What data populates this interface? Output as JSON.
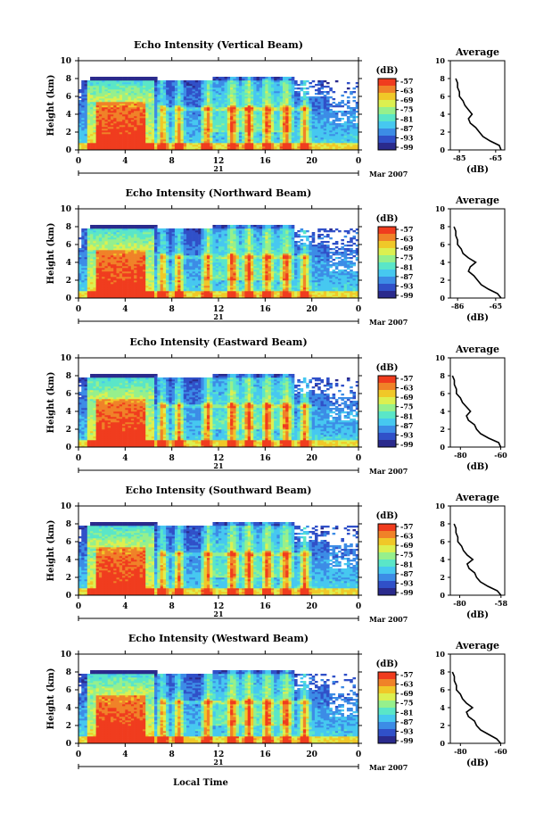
{
  "colors": {
    "scale": [
      "#2a2a8c",
      "#3050c8",
      "#3c8ce6",
      "#46c8f0",
      "#5ae6c8",
      "#96f08c",
      "#dcf050",
      "#f0c828",
      "#f08228",
      "#f03c1e"
    ],
    "low_echo": "#2a3c9c",
    "strong_echo": "#f03c1e"
  },
  "x_ticks": [
    "0",
    "4",
    "8",
    "12",
    "16",
    "20",
    "0"
  ],
  "y_ticks": [
    "0",
    "2",
    "4",
    "6",
    "8",
    "10"
  ],
  "colorbar_ticks": [
    "-57",
    "-63",
    "-69",
    "-75",
    "-81",
    "-87",
    "-93",
    "-99"
  ],
  "ylabel": "Height (km)",
  "date_mark": "21",
  "date_label": "Mar 2007",
  "xlabel": "Local Time",
  "colorbar_unit": "(dB)",
  "avg_title": "Average",
  "avg_xlabel": "(dB)",
  "chart_data": [
    {
      "type": "heatmap",
      "title": "Echo Intensity (Vertical Beam)",
      "ylabel": "Height (km)",
      "xticks": [
        "0",
        "4",
        "8",
        "12",
        "16",
        "20",
        "0"
      ],
      "ylim": [
        0,
        10
      ],
      "colorbar": {
        "label": "(dB)",
        "ticks": [
          -57,
          -63,
          -69,
          -75,
          -81,
          -87,
          -93,
          -99
        ]
      },
      "average_profile": {
        "title": "Average",
        "xlabel": "(dB)",
        "xticks": [
          "-85",
          "-65"
        ],
        "xlim": [
          -90,
          -60
        ],
        "heights": [
          0.0,
          0.5,
          1.0,
          1.5,
          2.0,
          2.5,
          3.0,
          3.5,
          4.0,
          4.5,
          5.0,
          5.5,
          6.0,
          6.5,
          7.0,
          7.5,
          8.0
        ],
        "values": [
          -62,
          -63,
          -68,
          -72,
          -74,
          -76,
          -79,
          -80,
          -78,
          -80,
          -82,
          -83,
          -85,
          -85,
          -86,
          -86,
          -87
        ]
      }
    },
    {
      "type": "heatmap",
      "title": "Echo Intensity (Northward Beam)",
      "ylabel": "Height (km)",
      "xticks": [
        "0",
        "4",
        "8",
        "12",
        "16",
        "20",
        "0"
      ],
      "ylim": [
        0,
        10
      ],
      "colorbar": {
        "label": "(dB)",
        "ticks": [
          -57,
          -63,
          -69,
          -75,
          -81,
          -87,
          -93,
          -99
        ]
      },
      "average_profile": {
        "title": "Average",
        "xlabel": "(dB)",
        "xticks": [
          "-86",
          "-65"
        ],
        "xlim": [
          -90,
          -60
        ],
        "heights": [
          0.0,
          0.5,
          1.0,
          1.5,
          2.0,
          2.5,
          3.0,
          3.5,
          4.0,
          4.5,
          5.0,
          5.5,
          6.0,
          6.5,
          7.0,
          7.5,
          8.0
        ],
        "values": [
          -62,
          -64,
          -69,
          -73,
          -75,
          -77,
          -80,
          -79,
          -76,
          -80,
          -83,
          -84,
          -86,
          -86,
          -87,
          -87,
          -88
        ]
      }
    },
    {
      "type": "heatmap",
      "title": "Echo Intensity (Eastward Beam)",
      "ylabel": "Height (km)",
      "xticks": [
        "0",
        "4",
        "8",
        "12",
        "16",
        "20",
        "0"
      ],
      "ylim": [
        0,
        10
      ],
      "colorbar": {
        "label": "(dB)",
        "ticks": [
          -57,
          -63,
          -69,
          -75,
          -81,
          -87,
          -93,
          -99
        ]
      },
      "average_profile": {
        "title": "Average",
        "xlabel": "(dB)",
        "xticks": [
          "-80",
          "-60"
        ],
        "xlim": [
          -85,
          -58
        ],
        "heights": [
          0.0,
          0.5,
          1.0,
          1.5,
          2.0,
          2.5,
          3.0,
          3.5,
          4.0,
          4.5,
          5.0,
          5.5,
          6.0,
          6.5,
          7.0,
          7.5,
          8.0
        ],
        "values": [
          -60,
          -61,
          -66,
          -70,
          -72,
          -73,
          -76,
          -77,
          -75,
          -77,
          -79,
          -80,
          -82,
          -82,
          -83,
          -83,
          -84
        ]
      }
    },
    {
      "type": "heatmap",
      "title": "Echo Intensity (Southward Beam)",
      "ylabel": "Height (km)",
      "xticks": [
        "0",
        "4",
        "8",
        "12",
        "16",
        "20",
        "0"
      ],
      "ylim": [
        0,
        10
      ],
      "colorbar": {
        "label": "(dB)",
        "ticks": [
          -57,
          -63,
          -69,
          -75,
          -81,
          -87,
          -93,
          -99
        ]
      },
      "average_profile": {
        "title": "Average",
        "xlabel": "(dB)",
        "xticks": [
          "-80",
          "-58"
        ],
        "xlim": [
          -85,
          -56
        ],
        "heights": [
          0.0,
          0.5,
          1.0,
          1.5,
          2.0,
          2.5,
          3.0,
          3.5,
          4.0,
          4.5,
          5.0,
          5.5,
          6.0,
          6.5,
          7.0,
          7.5,
          8.0
        ],
        "values": [
          -58,
          -60,
          -65,
          -69,
          -71,
          -72,
          -75,
          -76,
          -73,
          -76,
          -78,
          -79,
          -81,
          -81,
          -82,
          -82,
          -83
        ]
      }
    },
    {
      "type": "heatmap",
      "title": "Echo Intensity (Westward Beam)",
      "ylabel": "Height (km)",
      "xlabel": "Local Time",
      "xticks": [
        "0",
        "4",
        "8",
        "12",
        "16",
        "20",
        "0"
      ],
      "ylim": [
        0,
        10
      ],
      "colorbar": {
        "label": "(dB)",
        "ticks": [
          -57,
          -63,
          -69,
          -75,
          -81,
          -87,
          -93,
          -99
        ]
      },
      "average_profile": {
        "title": "Average",
        "xlabel": "(dB)",
        "xticks": [
          "-80",
          "-60"
        ],
        "xlim": [
          -85,
          -58
        ],
        "heights": [
          0.0,
          0.5,
          1.0,
          1.5,
          2.0,
          2.5,
          3.0,
          3.5,
          4.0,
          4.5,
          5.0,
          5.5,
          6.0,
          6.5,
          7.0,
          7.5,
          8.0
        ],
        "values": [
          -60,
          -62,
          -66,
          -70,
          -72,
          -73,
          -76,
          -77,
          -74,
          -77,
          -79,
          -80,
          -82,
          -82,
          -83,
          -83,
          -84
        ]
      }
    }
  ]
}
